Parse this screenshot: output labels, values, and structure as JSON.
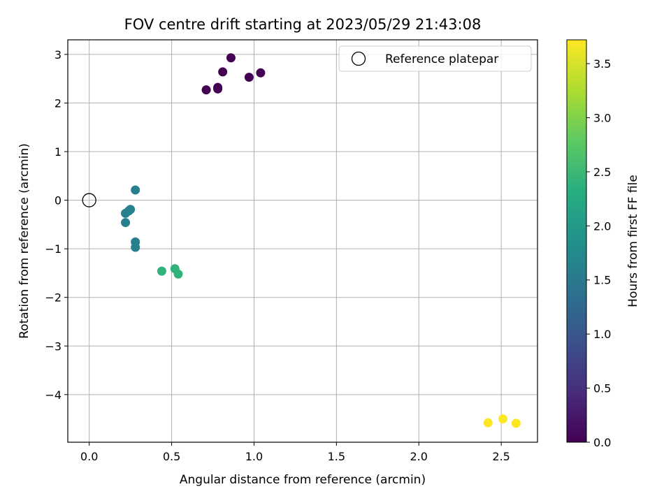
{
  "chart_data": {
    "type": "scatter",
    "title": "FOV centre drift starting at 2023/05/29 21:43:08",
    "xlabel": "Angular distance from reference (arcmin)",
    "ylabel": "Rotation from reference (arcmin)",
    "xlim": [
      -0.13,
      2.72
    ],
    "ylim": [
      -4.98,
      3.3
    ],
    "xticks": [
      0.0,
      0.5,
      1.0,
      1.5,
      2.0,
      2.5
    ],
    "xtick_labels": [
      "0.0",
      "0.5",
      "1.0",
      "1.5",
      "2.0",
      "2.5"
    ],
    "yticks": [
      3,
      2,
      1,
      0,
      -1,
      -2,
      -3,
      -4
    ],
    "ytick_labels": [
      "3",
      "2",
      "1",
      "0",
      "−1",
      "−2",
      "−3",
      "−4"
    ],
    "grid": true,
    "legend": {
      "position": "upper-right",
      "entries": [
        "Reference platepar"
      ]
    },
    "reference_point": {
      "x": 0.0,
      "y": 0.0,
      "label": "Reference platepar"
    },
    "colorbar": {
      "label": "Hours from first FF file",
      "colormap": "viridis",
      "range": [
        0.0,
        3.72
      ],
      "ticks": [
        0.0,
        0.5,
        1.0,
        1.5,
        2.0,
        2.5,
        3.0,
        3.5
      ],
      "tick_labels": [
        "0.0",
        "0.5",
        "1.0",
        "1.5",
        "2.0",
        "2.5",
        "3.0",
        "3.5"
      ]
    },
    "points": [
      {
        "x": 0.71,
        "y": 2.27,
        "hours": 0.0
      },
      {
        "x": 0.78,
        "y": 2.29,
        "hours": 0.0
      },
      {
        "x": 0.78,
        "y": 2.32,
        "hours": 0.0
      },
      {
        "x": 0.81,
        "y": 2.64,
        "hours": 0.0
      },
      {
        "x": 0.86,
        "y": 2.93,
        "hours": 0.0
      },
      {
        "x": 0.97,
        "y": 2.53,
        "hours": 0.0
      },
      {
        "x": 1.04,
        "y": 2.62,
        "hours": 0.0
      },
      {
        "x": 0.28,
        "y": 0.21,
        "hours": 1.6
      },
      {
        "x": 0.25,
        "y": -0.19,
        "hours": 1.6
      },
      {
        "x": 0.24,
        "y": -0.22,
        "hours": 1.6
      },
      {
        "x": 0.22,
        "y": -0.27,
        "hours": 1.6
      },
      {
        "x": 0.22,
        "y": -0.46,
        "hours": 1.6
      },
      {
        "x": 0.28,
        "y": -0.86,
        "hours": 1.6
      },
      {
        "x": 0.28,
        "y": -0.97,
        "hours": 1.6
      },
      {
        "x": 0.44,
        "y": -1.46,
        "hours": 2.4
      },
      {
        "x": 0.52,
        "y": -1.41,
        "hours": 2.4
      },
      {
        "x": 0.54,
        "y": -1.52,
        "hours": 2.4
      },
      {
        "x": 2.42,
        "y": -4.58,
        "hours": 3.72
      },
      {
        "x": 2.51,
        "y": -4.5,
        "hours": 3.72
      },
      {
        "x": 2.59,
        "y": -4.59,
        "hours": 3.72
      }
    ]
  }
}
